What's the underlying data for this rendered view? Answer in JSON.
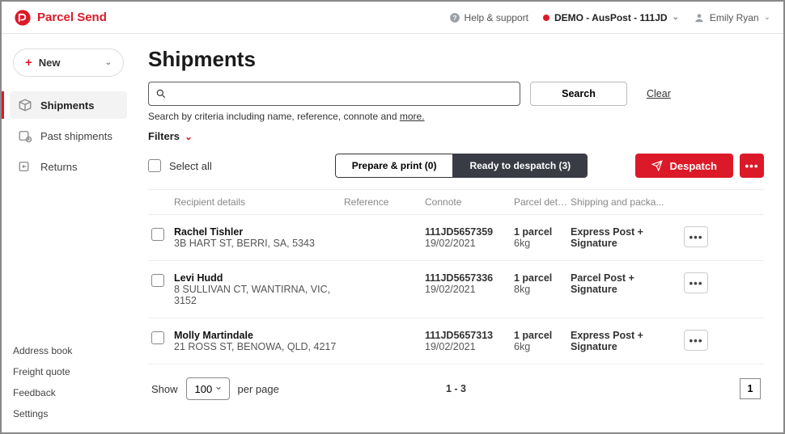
{
  "brand": {
    "name": "Parcel Send"
  },
  "topbar": {
    "help_label": "Help & support",
    "demo_label": "DEMO - AusPost - 111JD",
    "user_name": "Emily Ryan"
  },
  "sidebar": {
    "new_label": "New",
    "nav": [
      {
        "key": "shipments",
        "label": "Shipments",
        "active": true
      },
      {
        "key": "past",
        "label": "Past shipments",
        "active": false
      },
      {
        "key": "returns",
        "label": "Returns",
        "active": false
      }
    ],
    "bottom": [
      {
        "key": "address-book",
        "label": "Address book"
      },
      {
        "key": "freight-quote",
        "label": "Freight quote"
      },
      {
        "key": "feedback",
        "label": "Feedback"
      },
      {
        "key": "settings",
        "label": "Settings"
      }
    ]
  },
  "page": {
    "title": "Shipments",
    "search_placeholder": "",
    "search_button": "Search",
    "clear_label": "Clear",
    "hint_prefix": "Search by criteria including name, reference, connote and ",
    "hint_more": "more.",
    "filters_label": "Filters",
    "select_all_label": "Select all",
    "prepare_label": "Prepare & print (0)",
    "ready_label": "Ready to despatch (3)",
    "despatch_label": "Despatch"
  },
  "table": {
    "headers": {
      "recipient": "Recipient details",
      "reference": "Reference",
      "connote": "Connote",
      "parcel": "Parcel details",
      "shipping": "Shipping and packa..."
    },
    "rows": [
      {
        "name": "Rachel Tishler",
        "address": "3B HART ST, BERRI, SA, 5343",
        "connote": "111JD5657359",
        "date": "19/02/2021",
        "parcels": "1 parcel",
        "weight": "6kg",
        "service": "Express Post + Signature"
      },
      {
        "name": "Levi Hudd",
        "address": "8 SULLIVAN CT, WANTIRNA, VIC, 3152",
        "connote": "111JD5657336",
        "date": "19/02/2021",
        "parcels": "1 parcel",
        "weight": "8kg",
        "service": "Parcel Post + Signature"
      },
      {
        "name": "Molly Martindale",
        "address": "21 ROSS ST, BENOWA, QLD, 4217",
        "connote": "111JD5657313",
        "date": "19/02/2021",
        "parcels": "1 parcel",
        "weight": "6kg",
        "service": "Express Post + Signature"
      }
    ]
  },
  "footer": {
    "show_label": "Show",
    "per_page_label": "per page",
    "per_page_options": [
      "100"
    ],
    "per_page_selected": "100",
    "range": "1 - 3",
    "current_page": "1"
  },
  "colors": {
    "accent": "#dc1928",
    "dark_segment": "#3a3c45",
    "border": "#e5e5e5",
    "muted": "#888"
  }
}
